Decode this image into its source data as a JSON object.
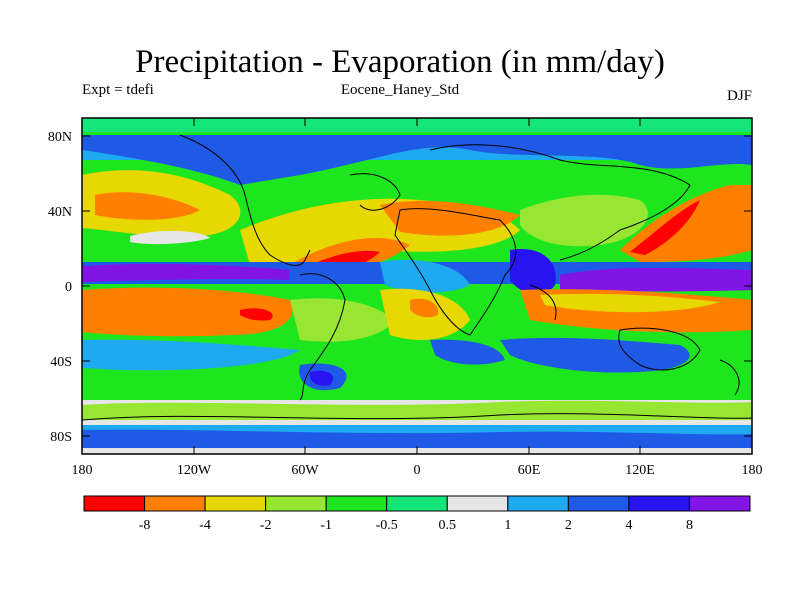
{
  "title": "Precipitation - Evaporation (in mm/day)",
  "experiment": "Expt = tdefi",
  "run_name": "Eocene_Haney_Std",
  "season": "DJF",
  "lat_ticks": [
    "80N",
    "40N",
    "0",
    "40S",
    "80S"
  ],
  "lon_ticks": [
    "180",
    "120W",
    "60W",
    "0",
    "60E",
    "120E",
    "180"
  ],
  "colorbar": {
    "labels": [
      "-8",
      "-4",
      "-2",
      "-1",
      "-0.5",
      "0.5",
      "1",
      "2",
      "4",
      "8"
    ],
    "colors": [
      "#ff0000",
      "#ff7f00",
      "#e6d800",
      "#96e632",
      "#1ee61e",
      "#14e67a",
      "#e6e6e6",
      "#1eaaf0",
      "#1e5ae6",
      "#2814f0",
      "#8214e6"
    ]
  }
}
